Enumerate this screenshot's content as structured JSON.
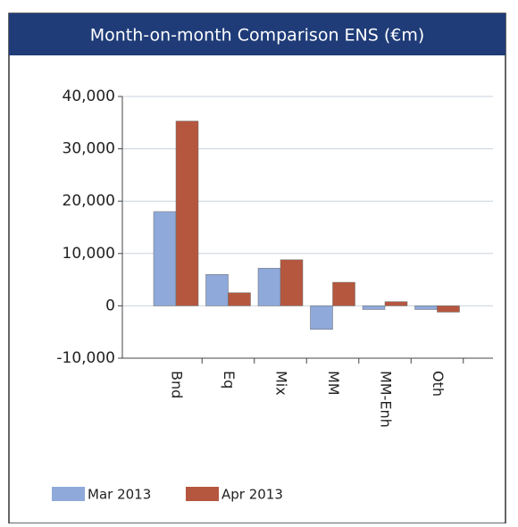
{
  "chart_data": {
    "type": "bar",
    "title": "Month-on-month Comparison ENS (€m)",
    "categories": [
      "Bnd",
      "Eq",
      "Mix",
      "MM",
      "MM-Enh",
      "Oth"
    ],
    "series": [
      {
        "name": "Mar 2013",
        "color": "#8fa9da",
        "values": [
          18000,
          6000,
          7200,
          -4500,
          -700,
          -700
        ]
      },
      {
        "name": "Apr 2013",
        "color": "#b5573f",
        "values": [
          35300,
          2500,
          8800,
          4500,
          800,
          -1200
        ]
      }
    ],
    "ylim": [
      -10000,
      40000
    ],
    "yticks": [
      {
        "value": -10000,
        "label": "-10,000"
      },
      0,
      {
        "value": 10000,
        "label": "10,000"
      },
      {
        "value": 20000,
        "label": "20,000"
      },
      {
        "value": 30000,
        "label": "30,000"
      },
      {
        "value": 40000,
        "label": "40,000"
      }
    ],
    "grid": true
  }
}
